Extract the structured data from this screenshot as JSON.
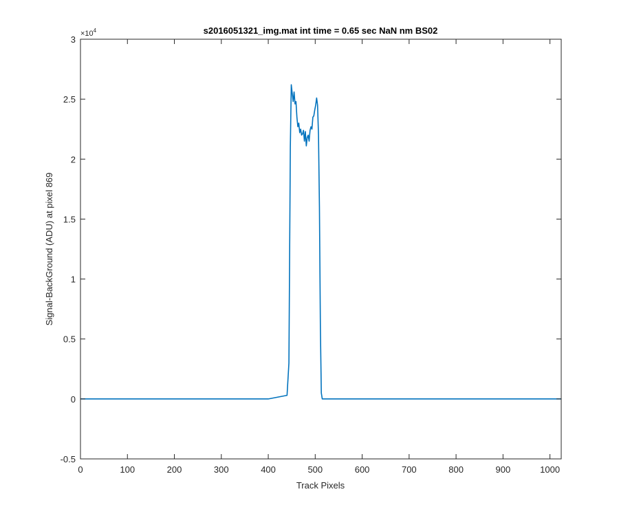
{
  "chart_data": {
    "type": "line",
    "title": "s2016051321_img.mat int time = 0.65 sec  NaN nm BS02",
    "xlabel": "Track Pixels",
    "ylabel": "Signal-BackGround (ADU) at pixel 869",
    "y_exponent_label": "×10",
    "y_exponent_power": "4",
    "xlim": [
      0,
      1024
    ],
    "ylim": [
      -5000,
      30000
    ],
    "x_ticks": [
      0,
      100,
      200,
      300,
      400,
      500,
      600,
      700,
      800,
      900,
      1000
    ],
    "x_tick_labels": [
      "0",
      "100",
      "200",
      "300",
      "400",
      "500",
      "600",
      "700",
      "800",
      "900",
      "1000"
    ],
    "y_ticks": [
      -5000,
      0,
      5000,
      10000,
      15000,
      20000,
      25000,
      30000
    ],
    "y_tick_labels": [
      "-0.5",
      "0",
      "0.5",
      "1",
      "1.5",
      "2",
      "2.5",
      "3"
    ],
    "grid": false,
    "line_color": "#0072bd",
    "series": [
      {
        "x": [
          0,
          100,
          200,
          300,
          400,
          440,
          444,
          447,
          449,
          451,
          453,
          455,
          457,
          459,
          461,
          463,
          465,
          467,
          469,
          471,
          473,
          475,
          477,
          479,
          481,
          483,
          485,
          487,
          489,
          491,
          493,
          495,
          497,
          499,
          501,
          503,
          505,
          507,
          509,
          511,
          513,
          515,
          600,
          700,
          800,
          900,
          1024
        ],
        "y": [
          0,
          0,
          0,
          0,
          0,
          300,
          3000,
          21000,
          26200,
          25500,
          24800,
          25600,
          24600,
          24800,
          23500,
          22700,
          23000,
          22200,
          22500,
          22000,
          22100,
          22400,
          21500,
          22300,
          21100,
          21800,
          22000,
          21500,
          22400,
          22700,
          22500,
          23500,
          23600,
          24100,
          24500,
          25100,
          24500,
          22000,
          16000,
          6000,
          500,
          0,
          0,
          0,
          0,
          0,
          0
        ]
      }
    ]
  }
}
